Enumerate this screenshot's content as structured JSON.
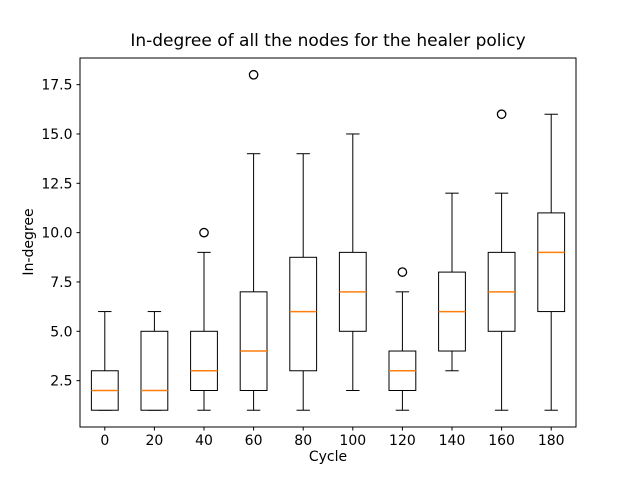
{
  "chart_data": {
    "type": "boxplot",
    "title": "In-degree of all the nodes for the healer policy",
    "xlabel": "Cycle",
    "ylabel": "In-degree",
    "categories": [
      "0",
      "20",
      "40",
      "60",
      "80",
      "100",
      "120",
      "140",
      "160",
      "180"
    ],
    "ytick_values": [
      2.5,
      5.0,
      7.5,
      10.0,
      12.5,
      15.0,
      17.5
    ],
    "ytick_labels": [
      "2.5",
      "5.0",
      "7.5",
      "10.0",
      "12.5",
      "15.0",
      "17.5"
    ],
    "ylim": [
      0.15,
      18.85
    ],
    "grid": false,
    "legend": null,
    "colors": {
      "box_line": "#000000",
      "median": "#ff7f0e",
      "background": "#ffffff",
      "text": "#000000"
    },
    "boxes": [
      {
        "cycle": "0",
        "whislo": 1,
        "q1": 1,
        "med": 2,
        "q3": 3,
        "whishi": 6,
        "fliers": []
      },
      {
        "cycle": "20",
        "whislo": 1,
        "q1": 1,
        "med": 2,
        "q3": 5,
        "whishi": 6,
        "fliers": []
      },
      {
        "cycle": "40",
        "whislo": 1,
        "q1": 2,
        "med": 3,
        "q3": 5,
        "whishi": 9,
        "fliers": [
          10
        ]
      },
      {
        "cycle": "60",
        "whislo": 1,
        "q1": 2,
        "med": 4,
        "q3": 7,
        "whishi": 14,
        "fliers": [
          18
        ]
      },
      {
        "cycle": "80",
        "whislo": 1,
        "q1": 3,
        "med": 6,
        "q3": 8.75,
        "whishi": 14,
        "fliers": []
      },
      {
        "cycle": "100",
        "whislo": 2,
        "q1": 5,
        "med": 7,
        "q3": 9,
        "whishi": 15,
        "fliers": []
      },
      {
        "cycle": "120",
        "whislo": 1,
        "q1": 2,
        "med": 3,
        "q3": 4,
        "whishi": 7,
        "fliers": [
          8
        ]
      },
      {
        "cycle": "140",
        "whislo": 3,
        "q1": 4,
        "med": 6,
        "q3": 8,
        "whishi": 12,
        "fliers": []
      },
      {
        "cycle": "160",
        "whislo": 1,
        "q1": 5,
        "med": 7,
        "q3": 9,
        "whishi": 12,
        "fliers": [
          16
        ]
      },
      {
        "cycle": "180",
        "whislo": 1,
        "q1": 6,
        "med": 9,
        "q3": 11,
        "whishi": 16,
        "fliers": []
      }
    ]
  }
}
